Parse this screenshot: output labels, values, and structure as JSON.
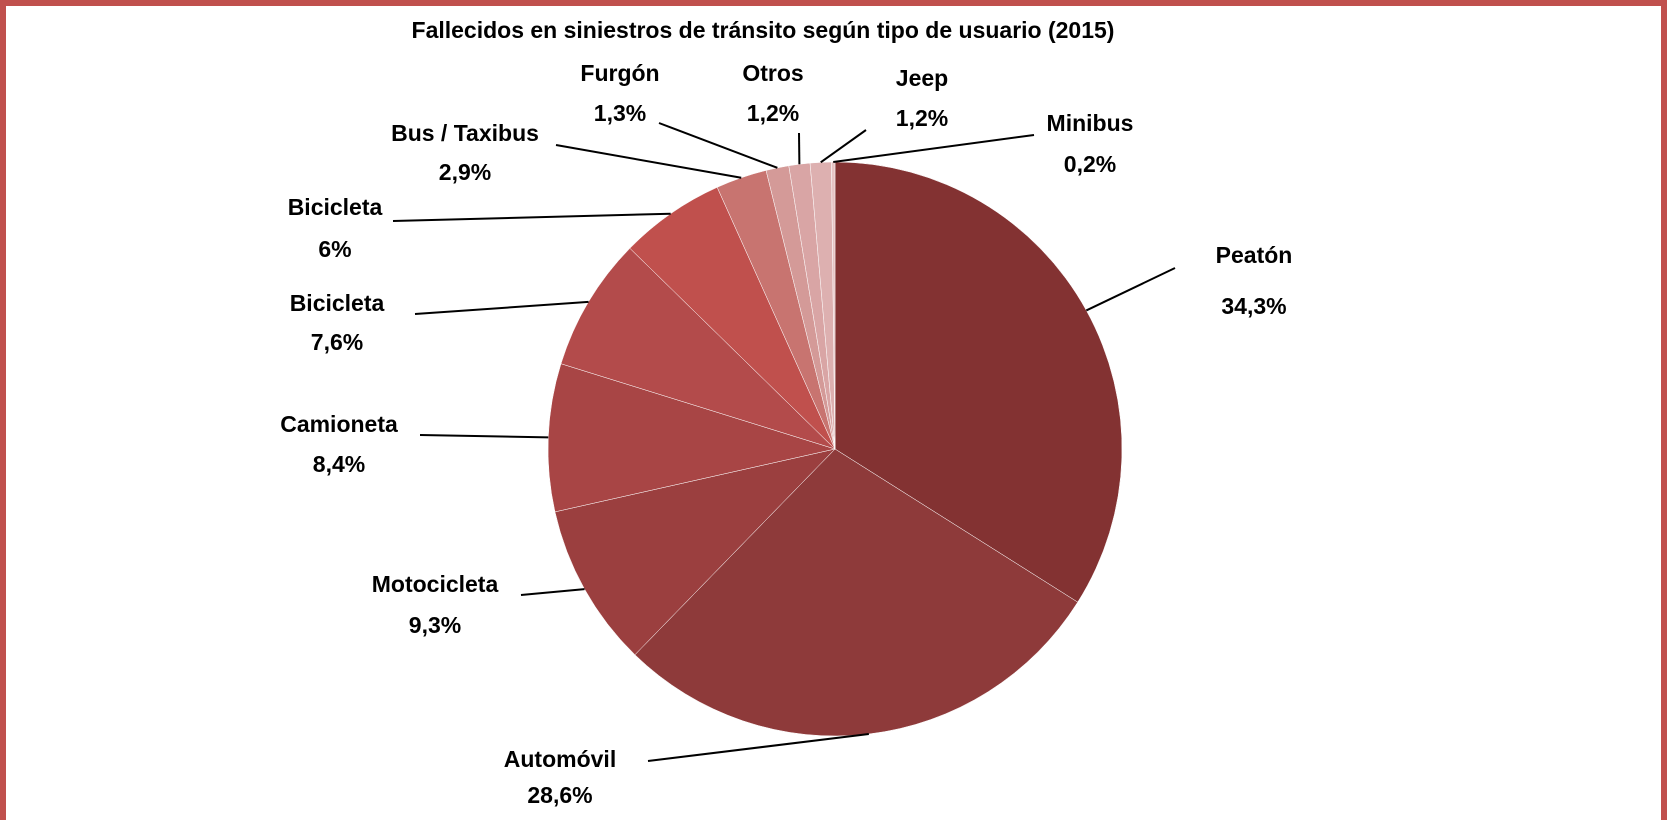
{
  "chart_data": {
    "type": "pie",
    "title": "Fallecidos en siniestros de tránsito según tipo de usuario (2015)",
    "categories": [
      "Peatón",
      "Automóvil",
      "Motocicleta",
      "Camioneta",
      "Bicicleta",
      "Bicicleta",
      "Bus / Taxibus",
      "Furgón",
      "Otros",
      "Jeep",
      "Minibus"
    ],
    "values": [
      34.3,
      28.6,
      9.3,
      8.4,
      7.6,
      6,
      2.9,
      1.3,
      1.2,
      1.2,
      0.2
    ],
    "value_labels": [
      "34,3%",
      "28,6%",
      "9,3%",
      "8,4%",
      "7,6%",
      "6%",
      "2,9%",
      "1,3%",
      "1,2%",
      "1,2%",
      "0,2%"
    ],
    "colors": [
      "#833232",
      "#8e3a3a",
      "#9b3f3f",
      "#a84545",
      "#b34b4b",
      "#c0504d",
      "#c87470",
      "#d49a98",
      "#d9a5a5",
      "#ddb0b0",
      "#e6c4c4"
    ]
  }
}
